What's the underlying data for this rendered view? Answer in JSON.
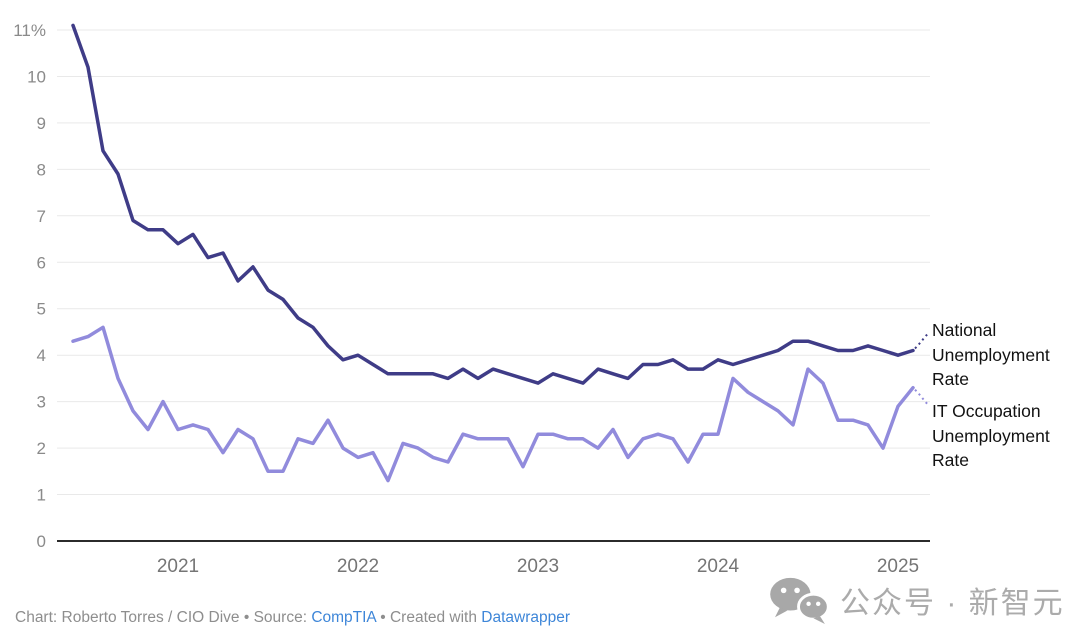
{
  "chart_data": {
    "type": "line",
    "title": "",
    "frequency": "monthly",
    "x_range": "Jun 2020 to Feb 2025",
    "grid": true,
    "legend_position": "right-annotations",
    "y_axis": {
      "ticks": [
        0,
        1,
        2,
        3,
        4,
        5,
        6,
        7,
        8,
        9,
        10,
        11
      ],
      "tick_labels": [
        "0",
        "1",
        "2",
        "3",
        "4",
        "5",
        "6",
        "7",
        "8",
        "9",
        "10",
        "11%"
      ],
      "ylim": [
        0,
        11.5
      ]
    },
    "x_axis": {
      "year_labels": [
        "2021",
        "2022",
        "2023",
        "2024",
        "2025"
      ],
      "year_month_index": [
        7,
        19,
        31,
        43,
        55
      ]
    },
    "series": [
      {
        "name": "National Unemployment Rate",
        "color": "#3f3c87",
        "values": [
          11.1,
          10.2,
          8.4,
          7.9,
          6.9,
          6.7,
          6.7,
          6.4,
          6.6,
          6.1,
          6.2,
          5.6,
          5.9,
          5.4,
          5.2,
          4.8,
          4.6,
          4.2,
          3.9,
          4.0,
          3.8,
          3.6,
          3.6,
          3.6,
          3.6,
          3.5,
          3.7,
          3.5,
          3.7,
          3.6,
          3.5,
          3.4,
          3.6,
          3.5,
          3.4,
          3.7,
          3.6,
          3.5,
          3.8,
          3.8,
          3.9,
          3.7,
          3.7,
          3.9,
          3.8,
          3.9,
          4.0,
          4.1,
          4.3,
          4.3,
          4.2,
          4.1,
          4.1,
          4.2,
          4.1,
          4.0,
          4.1
        ]
      },
      {
        "name": "IT Occupation Unemployment Rate",
        "color": "#918bdc",
        "values": [
          4.3,
          4.4,
          4.6,
          3.5,
          2.8,
          2.4,
          3.0,
          2.4,
          2.5,
          2.4,
          1.9,
          2.4,
          2.2,
          1.5,
          1.5,
          2.2,
          2.1,
          2.6,
          2.0,
          1.8,
          1.9,
          1.3,
          2.1,
          2.0,
          1.8,
          1.7,
          2.3,
          2.2,
          2.2,
          2.2,
          1.6,
          2.3,
          2.3,
          2.2,
          2.2,
          2.0,
          2.4,
          1.8,
          2.2,
          2.3,
          2.2,
          1.7,
          2.3,
          2.3,
          3.5,
          3.2,
          3.0,
          2.8,
          2.5,
          3.7,
          3.4,
          2.6,
          2.6,
          2.5,
          2.0,
          2.9,
          3.3
        ]
      }
    ]
  },
  "annotations": {
    "national_label": "National Unemployment Rate",
    "it_label": "IT Occupation Unemployment Rate"
  },
  "footer": {
    "part1": "Chart: Roberto Torres / CIO Dive • Source:",
    "source_link": "CompTIA",
    "part2": "• Created with",
    "created_link": "Datawrapper"
  },
  "watermark": {
    "icon": "wechat-icon",
    "text": "公众号 · 新智元"
  },
  "colors": {
    "national_line": "#3f3c87",
    "it_line": "#918bdc",
    "gridline": "#e9e9e9",
    "axis_baseline": "#2b2b2b",
    "y_tick_text": "#8a8a8a",
    "x_tick_text": "#757575",
    "annotation_text": "#121212",
    "footer_text": "#8e8e8e",
    "link_blue": "#3e86d8",
    "watermark_gray": "#ababab"
  }
}
